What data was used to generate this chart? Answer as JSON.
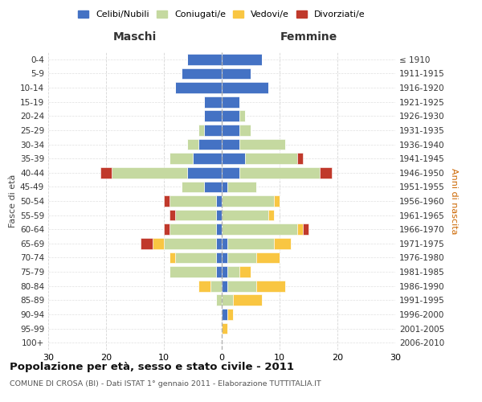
{
  "age_groups": [
    "0-4",
    "5-9",
    "10-14",
    "15-19",
    "20-24",
    "25-29",
    "30-34",
    "35-39",
    "40-44",
    "45-49",
    "50-54",
    "55-59",
    "60-64",
    "65-69",
    "70-74",
    "75-79",
    "80-84",
    "85-89",
    "90-94",
    "95-99",
    "100+"
  ],
  "birth_years": [
    "2006-2010",
    "2001-2005",
    "1996-2000",
    "1991-1995",
    "1986-1990",
    "1981-1985",
    "1976-1980",
    "1971-1975",
    "1966-1970",
    "1961-1965",
    "1956-1960",
    "1951-1955",
    "1946-1950",
    "1941-1945",
    "1936-1940",
    "1931-1935",
    "1926-1930",
    "1921-1925",
    "1916-1920",
    "1911-1915",
    "≤ 1910"
  ],
  "colors": {
    "celibi": "#4472c4",
    "coniugati": "#c5d9a0",
    "vedovi": "#f9c642",
    "divorziati": "#c0392b"
  },
  "maschi": {
    "celibi": [
      6,
      7,
      8,
      3,
      3,
      3,
      4,
      5,
      6,
      3,
      1,
      1,
      1,
      1,
      1,
      1,
      0,
      0,
      0,
      0,
      0
    ],
    "coniugati": [
      0,
      0,
      0,
      0,
      0,
      1,
      2,
      4,
      13,
      4,
      8,
      7,
      8,
      9,
      7,
      8,
      2,
      1,
      0,
      0,
      0
    ],
    "vedovi": [
      0,
      0,
      0,
      0,
      0,
      0,
      0,
      0,
      0,
      0,
      0,
      0,
      0,
      2,
      1,
      0,
      2,
      0,
      0,
      0,
      0
    ],
    "divorziati": [
      0,
      0,
      0,
      0,
      0,
      0,
      0,
      0,
      2,
      0,
      1,
      1,
      1,
      2,
      0,
      0,
      0,
      0,
      0,
      0,
      0
    ]
  },
  "femmine": {
    "celibi": [
      7,
      5,
      8,
      3,
      3,
      3,
      3,
      4,
      3,
      1,
      0,
      0,
      0,
      1,
      1,
      1,
      1,
      0,
      1,
      0,
      0
    ],
    "coniugati": [
      0,
      0,
      0,
      0,
      1,
      2,
      8,
      9,
      14,
      5,
      9,
      8,
      13,
      8,
      5,
      2,
      5,
      2,
      0,
      0,
      0
    ],
    "vedovi": [
      0,
      0,
      0,
      0,
      0,
      0,
      0,
      0,
      0,
      0,
      1,
      1,
      1,
      3,
      4,
      2,
      5,
      5,
      1,
      1,
      0
    ],
    "divorziati": [
      0,
      0,
      0,
      0,
      0,
      0,
      0,
      1,
      2,
      0,
      0,
      0,
      1,
      0,
      0,
      0,
      0,
      0,
      0,
      0,
      0
    ]
  },
  "xlim": 30,
  "title": "Popolazione per età, sesso e stato civile - 2011",
  "subtitle": "COMUNE DI CROSA (BI) - Dati ISTAT 1° gennaio 2011 - Elaborazione TUTTITALIA.IT",
  "ylabel_left": "Fasce di età",
  "ylabel_right": "Anni di nascita",
  "xlabel_maschi": "Maschi",
  "xlabel_femmine": "Femmine",
  "legend_labels": [
    "Celibi/Nubili",
    "Coniugati/e",
    "Vedovi/e",
    "Divorziati/e"
  ]
}
